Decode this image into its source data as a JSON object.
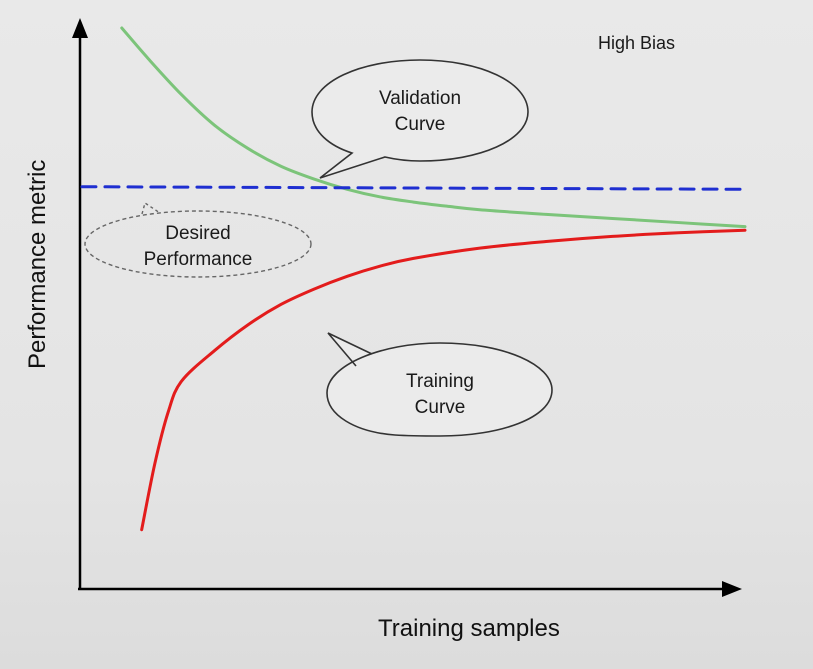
{
  "chart_data": {
    "type": "line",
    "title": "High Bias",
    "xlabel": "Training samples",
    "ylabel": "Performance metric",
    "grid": false,
    "legend": "none",
    "series": [
      {
        "key": "validation",
        "color": "#7cc47a",
        "style": "solid",
        "points": [
          [
            0.06,
            1.0
          ],
          [
            0.1,
            0.94
          ],
          [
            0.15,
            0.87
          ],
          [
            0.2,
            0.81
          ],
          [
            0.25,
            0.765
          ],
          [
            0.3,
            0.73
          ],
          [
            0.35,
            0.705
          ],
          [
            0.4,
            0.685
          ],
          [
            0.45,
            0.67
          ],
          [
            0.5,
            0.66
          ],
          [
            0.55,
            0.652
          ],
          [
            0.6,
            0.645
          ],
          [
            0.7,
            0.636
          ],
          [
            0.8,
            0.628
          ],
          [
            0.9,
            0.62
          ],
          [
            1.0,
            0.612
          ]
        ]
      },
      {
        "key": "training",
        "color": "#e31c1c",
        "style": "solid",
        "points": [
          [
            0.09,
            0.02
          ],
          [
            0.11,
            0.15
          ],
          [
            0.13,
            0.25
          ],
          [
            0.15,
            0.31
          ],
          [
            0.2,
            0.37
          ],
          [
            0.25,
            0.42
          ],
          [
            0.3,
            0.46
          ],
          [
            0.35,
            0.49
          ],
          [
            0.4,
            0.515
          ],
          [
            0.45,
            0.535
          ],
          [
            0.5,
            0.55
          ],
          [
            0.6,
            0.57
          ],
          [
            0.7,
            0.583
          ],
          [
            0.8,
            0.593
          ],
          [
            0.9,
            0.6
          ],
          [
            1.0,
            0.605
          ]
        ]
      },
      {
        "key": "desired",
        "color": "#1f2fd1",
        "style": "dashed",
        "points": [
          [
            0.0,
            0.69
          ],
          [
            1.0,
            0.685
          ]
        ]
      }
    ],
    "annotations": {
      "high_bias": "High Bias",
      "validation": [
        "Validation",
        "Curve"
      ],
      "desired": [
        "Desired",
        "Performance"
      ],
      "training": [
        "Training",
        "Curve"
      ]
    },
    "xlim": [
      0,
      1
    ],
    "ylim": [
      0,
      1
    ]
  }
}
